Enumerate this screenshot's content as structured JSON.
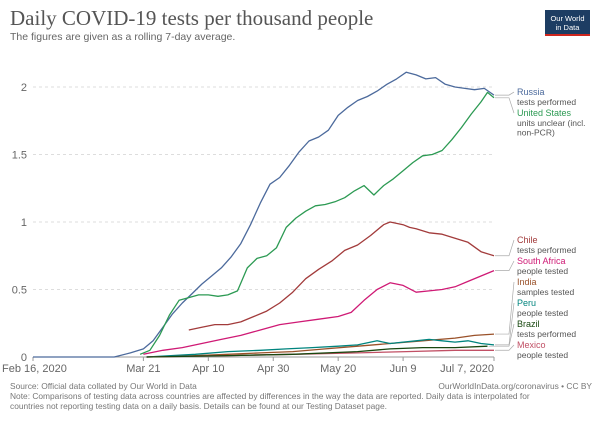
{
  "header": {
    "title": "Daily COVID-19 tests per thousand people",
    "subtitle": "The figures are given as a rolling 7-day average.",
    "logo_line1": "Our World",
    "logo_line2": "in Data"
  },
  "footer": {
    "source": "Source: Official data collated by Our World in Data",
    "url": "OurWorldInData.org/coronavirus • CC BY",
    "note_line1": "Note: Comparisons of testing data across countries are affected by differences in the way the data are reported. Daily data is interpolated for",
    "note_line2": "countries not reporting testing data on a daily basis. Details can be found at our Testing Dataset page."
  },
  "chart_data": {
    "type": "line",
    "title": "Daily COVID-19 tests per thousand people",
    "subtitle": "The figures are given as a rolling 7-day average.",
    "x_tick_labels": [
      "Feb 16, 2020",
      "Mar 21",
      "Apr 10",
      "Apr 30",
      "May 20",
      "Jun 9",
      "Jul 7, 2020"
    ],
    "x_tick_days": [
      0,
      34,
      54,
      74,
      94,
      114,
      142
    ],
    "y_ticks": [
      0,
      0.5,
      1,
      1.5,
      2
    ],
    "y_tick_labels": [
      "0",
      "0.5",
      "1",
      "1.5",
      "2"
    ],
    "xlim": [
      0,
      142
    ],
    "ylim": [
      0,
      2.2
    ],
    "grid": "horizontal-dashed",
    "series": [
      {
        "name": "Russia",
        "note_lines": [
          "tests performed"
        ],
        "color": "#4c6a9c",
        "x": [
          0,
          25,
          30,
          34,
          37,
          40,
          43,
          46,
          49,
          52,
          55,
          58,
          61,
          64,
          67,
          70,
          73,
          76,
          79,
          82,
          85,
          88,
          91,
          94,
          97,
          100,
          103,
          106,
          109,
          112,
          115,
          118,
          121,
          124,
          127,
          130,
          133,
          136,
          139,
          142
        ],
        "y": [
          0,
          0,
          0.03,
          0.06,
          0.12,
          0.22,
          0.32,
          0.4,
          0.47,
          0.54,
          0.6,
          0.66,
          0.74,
          0.84,
          0.98,
          1.14,
          1.28,
          1.33,
          1.42,
          1.52,
          1.6,
          1.63,
          1.68,
          1.79,
          1.85,
          1.9,
          1.93,
          1.97,
          2.02,
          2.06,
          2.11,
          2.09,
          2.06,
          2.07,
          2.02,
          2.0,
          1.99,
          1.98,
          1.99,
          1.94
        ]
      },
      {
        "name": "United States",
        "note_lines": [
          "units unclear (incl.",
          "non-PCR)"
        ],
        "color": "#2c9a53",
        "x": [
          33,
          36,
          39,
          42,
          45,
          48,
          51,
          54,
          57,
          60,
          63,
          66,
          69,
          72,
          75,
          78,
          81,
          84,
          87,
          90,
          93,
          96,
          99,
          102,
          105,
          108,
          111,
          114,
          117,
          120,
          123,
          126,
          129,
          132,
          135,
          138,
          140,
          142
        ],
        "y": [
          0.02,
          0.05,
          0.16,
          0.31,
          0.42,
          0.44,
          0.46,
          0.46,
          0.45,
          0.46,
          0.49,
          0.66,
          0.73,
          0.75,
          0.81,
          0.96,
          1.03,
          1.08,
          1.12,
          1.13,
          1.15,
          1.18,
          1.23,
          1.27,
          1.2,
          1.27,
          1.32,
          1.38,
          1.44,
          1.49,
          1.5,
          1.53,
          1.61,
          1.7,
          1.8,
          1.89,
          1.96,
          1.92
        ]
      },
      {
        "name": "Chile",
        "note_lines": [
          "tests performed"
        ],
        "color": "#a23b3b",
        "x": [
          48,
          52,
          56,
          60,
          64,
          68,
          72,
          76,
          80,
          84,
          88,
          92,
          96,
          100,
          104,
          108,
          110,
          112,
          114,
          116,
          118,
          122,
          126,
          130,
          134,
          138,
          142
        ],
        "y": [
          0.2,
          0.22,
          0.24,
          0.24,
          0.26,
          0.3,
          0.34,
          0.4,
          0.48,
          0.58,
          0.65,
          0.71,
          0.79,
          0.83,
          0.9,
          0.98,
          1.0,
          0.99,
          0.98,
          0.96,
          0.95,
          0.92,
          0.91,
          0.88,
          0.85,
          0.78,
          0.75
        ]
      },
      {
        "name": "South Africa",
        "note_lines": [
          "people tested"
        ],
        "color": "#cf1a75",
        "x": [
          34,
          40,
          46,
          52,
          58,
          64,
          70,
          76,
          82,
          88,
          94,
          98,
          102,
          106,
          110,
          114,
          118,
          122,
          126,
          130,
          134,
          138,
          142
        ],
        "y": [
          0.02,
          0.05,
          0.07,
          0.1,
          0.13,
          0.16,
          0.2,
          0.24,
          0.26,
          0.28,
          0.3,
          0.33,
          0.42,
          0.5,
          0.55,
          0.53,
          0.48,
          0.49,
          0.5,
          0.52,
          0.56,
          0.6,
          0.64
        ]
      },
      {
        "name": "India",
        "note_lines": [
          "samples tested"
        ],
        "color": "#9a5129",
        "x": [
          35,
          50,
          60,
          70,
          80,
          90,
          100,
          110,
          120,
          130,
          136,
          142
        ],
        "y": [
          0,
          0.01,
          0.02,
          0.03,
          0.04,
          0.06,
          0.08,
          0.1,
          0.12,
          0.14,
          0.16,
          0.17
        ]
      },
      {
        "name": "Peru",
        "note_lines": [
          "people tested"
        ],
        "color": "#00847e",
        "x": [
          35,
          50,
          60,
          70,
          78,
          86,
          94,
          100,
          106,
          110,
          114,
          118,
          122,
          126,
          130,
          134,
          138,
          142
        ],
        "y": [
          0,
          0.02,
          0.04,
          0.05,
          0.06,
          0.07,
          0.08,
          0.09,
          0.12,
          0.1,
          0.11,
          0.12,
          0.13,
          0.12,
          0.11,
          0.12,
          0.1,
          0.09
        ]
      },
      {
        "name": "Mexico",
        "note_lines": [
          "people tested"
        ],
        "color": "#c15065",
        "x": [
          35,
          60,
          80,
          100,
          115,
          130,
          142
        ],
        "y": [
          0,
          0.01,
          0.02,
          0.03,
          0.04,
          0.05,
          0.05
        ]
      },
      {
        "name": "Brazil",
        "note_lines": [
          "tests performed"
        ],
        "color": "#18470f",
        "x": [
          35,
          60,
          80,
          100,
          110,
          120,
          130,
          140
        ],
        "y": [
          0,
          0.01,
          0.02,
          0.04,
          0.06,
          0.07,
          0.07,
          0.08
        ]
      }
    ]
  }
}
